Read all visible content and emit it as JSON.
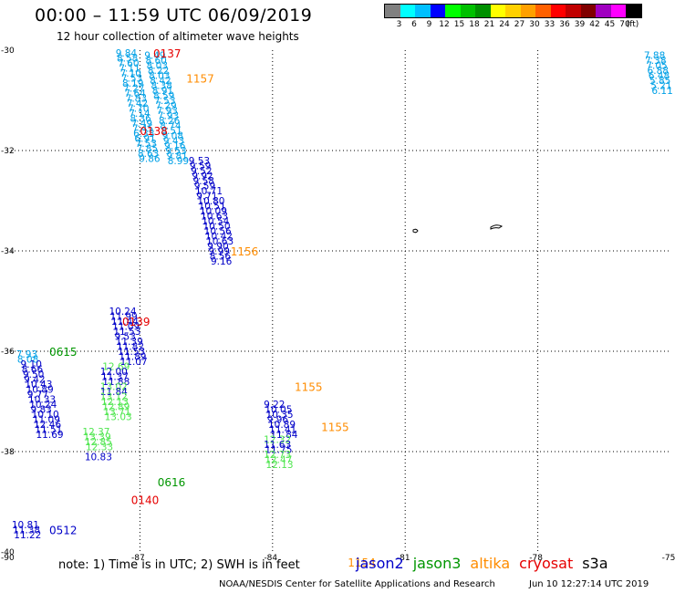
{
  "header": {
    "title": "00:00 – 11:59 UTC 06/09/2019",
    "subtitle": "12 hour collection of altimeter wave heights"
  },
  "legend": {
    "colors": [
      "#808080",
      "#00ffff",
      "#00bfff",
      "#0000ff",
      "#00ff00",
      "#00c000",
      "#009000",
      "#ffff00",
      "#ffd000",
      "#ffa000",
      "#ff6000",
      "#ff0000",
      "#c00000",
      "#800000",
      "#a000c0",
      "#ff00ff",
      "#000000"
    ],
    "labels": [
      "3",
      "6",
      "9",
      "12",
      "15",
      "18",
      "21",
      "24",
      "27",
      "30",
      "33",
      "36",
      "39",
      "42",
      "45",
      "70",
      "(ft)"
    ]
  },
  "map": {
    "lat_ticks": [
      "-30",
      "-32",
      "-34",
      "-36",
      "-38",
      "-40"
    ],
    "lon_ticks": [
      "-87",
      "-84",
      "-81",
      "-78",
      "-75"
    ],
    "colors": {
      "jason2": "#0000c8",
      "jason3": "#009600",
      "altika": "#ff8c00",
      "cryosat": "#e60000",
      "s3a": "#000000",
      "light_blue": "#00a0e6",
      "light_green": "#50e650"
    },
    "tracks": [
      {
        "sat": "jason2",
        "shade": "light_blue",
        "lon": -87.55,
        "lat": -30.05,
        "step": 0.1,
        "values": [
          "9.84",
          "8.58",
          "7.60",
          "7.11",
          "7.10",
          "7.53",
          "8.19",
          "7.27",
          "7.64",
          "7.83",
          "7.42",
          "7.70",
          "7.14",
          "8.36",
          "7.49",
          "7.45",
          "6.33",
          "6.91",
          "7.53",
          "7.85",
          "8.63",
          "9.86"
        ]
      },
      {
        "sat": "jason2",
        "shade": "dark",
        "lon": -87.7,
        "lat": -35.2,
        "step": 0.1,
        "values": [
          "10.24",
          "11.99",
          "11.44",
          "11.09",
          "11.53",
          "9.53",
          "11.39",
          "11.82",
          "11.53",
          "11.89",
          "11.07"
        ]
      },
      {
        "sat": "jason2",
        "shade": "light_green",
        "lon": -87.85,
        "lat": -36.3,
        "step": 0.1,
        "values": [
          "12.69"
        ]
      },
      {
        "sat": "jason2",
        "shade": "dark",
        "lon": -87.9,
        "lat": -36.4,
        "step": 0.1,
        "values": [
          "12.00",
          "11.37",
          "11.88"
        ]
      },
      {
        "sat": "jason2",
        "shade": "light_green",
        "lon": -87.9,
        "lat": -36.7,
        "step": 0.1,
        "values": [
          "13.02"
        ]
      },
      {
        "sat": "jason2",
        "shade": "dark",
        "lon": -87.9,
        "lat": -36.8,
        "step": 0.1,
        "values": [
          "11.84"
        ]
      },
      {
        "sat": "jason2",
        "shade": "light_green",
        "lon": -87.9,
        "lat": -36.9,
        "step": 0.1,
        "values": [
          "13.12",
          "12.13",
          "12.89",
          "13.71",
          "13.03"
        ]
      },
      {
        "sat": "jason2",
        "shade": "light_blue",
        "lon": -86.9,
        "lat": -30.1,
        "step": 0.1,
        "values": [
          "9.49",
          "8.60",
          "8.03",
          "8.22",
          "8.03",
          "8.42",
          "8.38",
          "8.91",
          "8.59",
          "7.53",
          "7.29",
          "7.93",
          "7.93",
          "8.26",
          "8.74",
          "8.51",
          "9.08",
          "9.43",
          "9.16",
          "9.53",
          "9.81",
          "8.99"
        ]
      },
      {
        "sat": "jason2",
        "shade": "dark",
        "lon": -85.9,
        "lat": -32.2,
        "step": 0.1,
        "values": [
          "9.53",
          "9.59",
          "9.52",
          "9.92",
          "9.58",
          "9.59",
          "10.71",
          "9.71",
          "10.80",
          "10.51",
          "10.09",
          "10.63",
          "10.54",
          "10.50",
          "10.56",
          "10.42",
          "10.63",
          "9.90",
          "9.99",
          "8.56",
          "9.16"
        ]
      },
      {
        "sat": "jason2",
        "shade": "dark",
        "lon": -84.2,
        "lat": -37.05,
        "step": 0.1,
        "values": [
          "9.22",
          "10.05",
          "10.35",
          "9.96",
          "10.89",
          "11.41",
          "11.84"
        ]
      },
      {
        "sat": "jason2",
        "shade": "light_green",
        "lon": -84.2,
        "lat": -37.75,
        "step": 0.1,
        "values": [
          "12.32"
        ]
      },
      {
        "sat": "jason2",
        "shade": "dark",
        "lon": -84.2,
        "lat": -37.85,
        "step": 0.1,
        "values": [
          "11.63",
          "11.75"
        ]
      },
      {
        "sat": "jason2",
        "shade": "light_green",
        "lon": -84.2,
        "lat": -38.05,
        "step": 0.1,
        "values": [
          "12.73",
          "12.47",
          "12.13"
        ]
      },
      {
        "sat": "jason2",
        "shade": "light_blue",
        "lon": -89.8,
        "lat": -36.05,
        "step": 0.1,
        "values": [
          "7.93",
          "8.08"
        ]
      },
      {
        "sat": "jason2",
        "shade": "dark",
        "lon": -89.7,
        "lat": -36.25,
        "step": 0.1,
        "values": [
          "9.10",
          "8.66",
          "9.50",
          "9.42",
          "10.43",
          "10.89",
          "9.77",
          "10.33",
          "10.24",
          "9.83",
          "10.10",
          "11.09",
          "12.46",
          "11.51",
          "11.69"
        ]
      },
      {
        "sat": "jason2",
        "shade": "light_green",
        "lon": -88.3,
        "lat": -37.6,
        "step": 0.1,
        "values": [
          "12.37",
          "13.39",
          "12.85",
          "12.33"
        ]
      },
      {
        "sat": "jason2",
        "shade": "dark",
        "lon": -88.25,
        "lat": -38.1,
        "step": 0.1,
        "values": [
          "10.83"
        ]
      },
      {
        "sat": "jason2",
        "shade": "dark",
        "lon": -89.9,
        "lat": -39.45,
        "step": 0.1,
        "values": [
          "10.81",
          "11.38",
          "11.22"
        ]
      },
      {
        "sat": "jason2",
        "shade": "light_blue",
        "lon": -75.6,
        "lat": -30.1,
        "step": 0.1,
        "values": [
          "7.88",
          "7.38",
          "7.05",
          "6.88",
          "6.48",
          "5.85",
          "5.21",
          "6.11"
        ]
      }
    ],
    "labels": [
      {
        "text": "0137",
        "sat": "cryosat",
        "lon": -86.7,
        "lat": -30.05
      },
      {
        "text": "1157",
        "sat": "altika",
        "lon": -85.95,
        "lat": -30.55
      },
      {
        "text": "0138",
        "sat": "cryosat",
        "lon": -87.0,
        "lat": -31.6
      },
      {
        "text": "1156",
        "sat": "altika",
        "lon": -84.95,
        "lat": -34.0
      },
      {
        "text": "0139",
        "sat": "cryosat",
        "lon": -87.4,
        "lat": -35.4
      },
      {
        "text": "0615",
        "sat": "jason3",
        "lon": -89.05,
        "lat": -36.0
      },
      {
        "text": "1155",
        "sat": "altika",
        "lon": -83.5,
        "lat": -36.7
      },
      {
        "text": "1155",
        "sat": "altika",
        "lon": -82.9,
        "lat": -37.5
      },
      {
        "text": "0616",
        "sat": "jason3",
        "lon": -86.6,
        "lat": -38.6
      },
      {
        "text": "0140",
        "sat": "cryosat",
        "lon": -87.2,
        "lat": -38.95
      },
      {
        "text": "0512",
        "sat": "jason2",
        "lon": -89.05,
        "lat": -39.55
      },
      {
        "text": "1154",
        "sat": "altika",
        "lon": -82.3,
        "lat": -40.2
      }
    ]
  },
  "note": "note:  1) Time is in UTC;  2) SWH is in feet",
  "satellites": [
    {
      "name": "jason2",
      "color": "#0000c8"
    },
    {
      "name": "jason3",
      "color": "#009600"
    },
    {
      "name": "altika",
      "color": "#ff8c00"
    },
    {
      "name": "cryosat",
      "color": "#e60000"
    },
    {
      "name": "s3a",
      "color": "#000000"
    }
  ],
  "footer": {
    "credit": "NOAA/NESDIS Center for Satellite Applications and Research",
    "timestamp": "Jun 10 12:27:14 UTC 2019"
  }
}
